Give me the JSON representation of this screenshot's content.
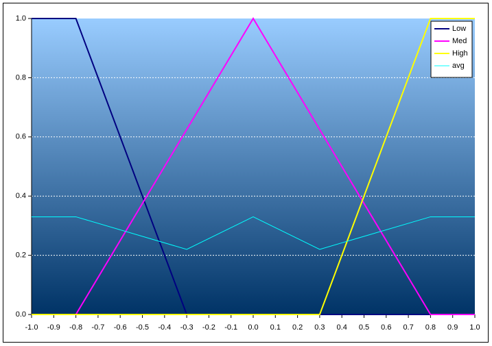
{
  "chart_data": {
    "type": "line",
    "x": [
      -1.0,
      -0.8,
      -0.3,
      0,
      0.3,
      0.8,
      1.0
    ],
    "series": [
      {
        "name": "Low",
        "color": "#000080",
        "values": [
          1,
          1,
          0,
          0,
          0,
          0,
          0
        ]
      },
      {
        "name": "Med",
        "color": "#ff00ff",
        "values": [
          0,
          0,
          0.625,
          1,
          0.625,
          0,
          0
        ]
      },
      {
        "name": "High",
        "color": "#ffff00",
        "values": [
          0,
          0,
          0,
          0,
          0,
          1,
          1
        ]
      },
      {
        "name": "avg",
        "color": "#00ffff",
        "values": [
          0.33,
          0.33,
          0.22,
          0.33,
          0.22,
          0.33,
          0.33
        ]
      }
    ],
    "xlim": [
      -1.0,
      1.0
    ],
    "xticks": [
      {
        "value": -1.0,
        "label": "-1.0"
      },
      -0.9,
      -0.8,
      -0.7,
      -0.6,
      -0.5,
      -0.4,
      -0.3,
      -0.2,
      -0.1,
      {
        "value": 0,
        "label": "0.0"
      },
      0.1,
      0.2,
      0.3,
      0.4,
      0.5,
      0.6,
      0.7,
      0.8,
      0.9,
      {
        "value": 1.0,
        "label": "1.0"
      }
    ],
    "ylim": [
      0,
      1.0
    ],
    "yticks": [
      {
        "value": 0,
        "label": "0.0"
      },
      0.2,
      0.4,
      0.6,
      0.8,
      {
        "value": 1.0,
        "label": "1.0"
      }
    ],
    "grid": true,
    "legend": "upper right"
  }
}
